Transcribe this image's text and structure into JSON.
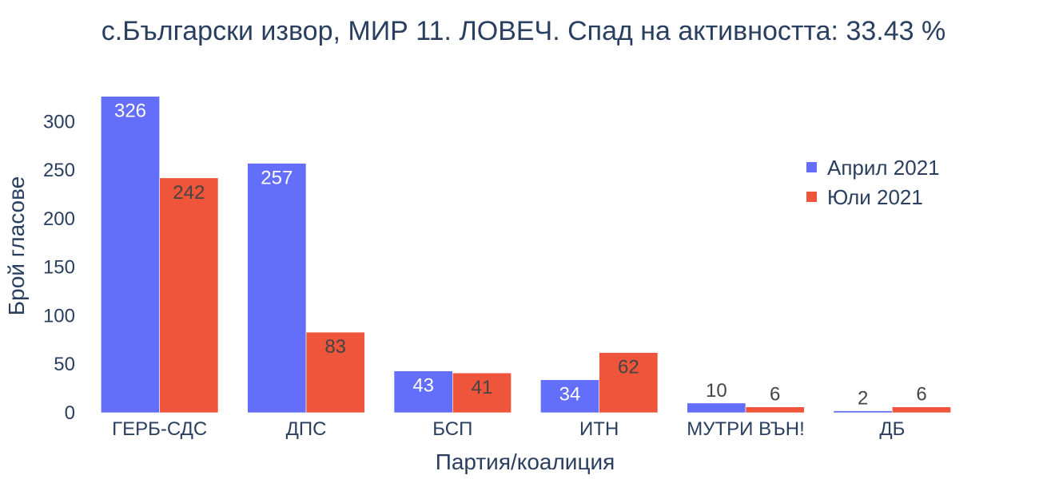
{
  "chart_data": {
    "type": "bar",
    "title": "с.Български извор, МИР 11. ЛОВЕЧ. Спад на активността: 33.43 %",
    "xlabel": "Партия/коалиция",
    "ylabel": "Брой гласове",
    "categories": [
      "ГЕРБ-СДС",
      "ДПС",
      "БСП",
      "ИТН",
      "МУТРИ ВЪН!",
      "ДБ"
    ],
    "series": [
      {
        "name": "Април 2021",
        "color": "#636efa",
        "values": [
          326,
          257,
          43,
          34,
          10,
          2
        ]
      },
      {
        "name": "Юли 2021",
        "color": "#ef553b",
        "values": [
          242,
          83,
          41,
          62,
          6,
          6
        ]
      }
    ],
    "yticks": [
      0,
      50,
      100,
      150,
      200,
      250,
      300
    ],
    "ylim": [
      0,
      343
    ],
    "grid": false,
    "legend_position": "top-right"
  }
}
